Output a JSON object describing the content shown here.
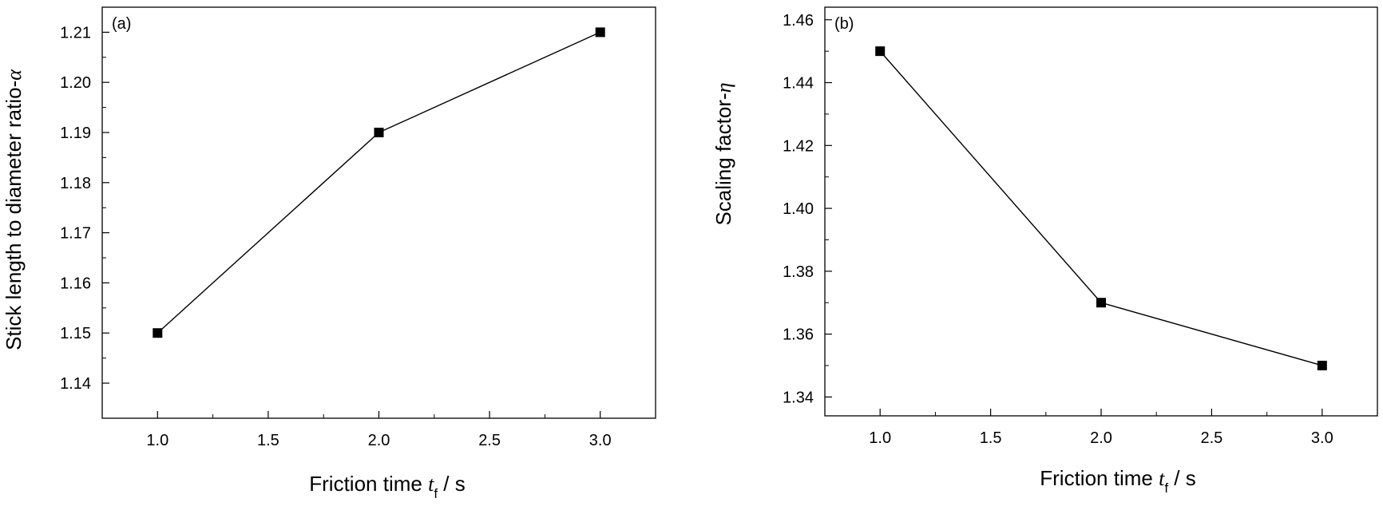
{
  "chart_data": [
    {
      "type": "line",
      "panel_label": "(a)",
      "x": [
        1.0,
        2.0,
        3.0
      ],
      "series": [
        {
          "values": [
            1.15,
            1.19,
            1.21
          ]
        }
      ],
      "xlim": [
        0.75,
        3.25
      ],
      "ylim": [
        1.133,
        1.215
      ],
      "xticks": [
        1.0,
        1.5,
        2.0,
        2.5,
        3.0
      ],
      "xtick_labels": [
        "1.0",
        "1.5",
        "2.0",
        "2.5",
        "3.0"
      ],
      "yticks": [
        1.14,
        1.15,
        1.16,
        1.17,
        1.18,
        1.19,
        1.2,
        1.21
      ],
      "ytick_labels": [
        "1.14",
        "1.15",
        "1.16",
        "1.17",
        "1.18",
        "1.19",
        "1.20",
        "1.21"
      ],
      "xlabel": {
        "prefix": "Friction time ",
        "var": "t",
        "sub": "f",
        "suffix": " / s"
      },
      "ylabel": {
        "prefix": "Stick length to diameter ratio-",
        "var": "α"
      },
      "grid": false,
      "marker": "square",
      "color": "#000000"
    },
    {
      "type": "line",
      "panel_label": "(b)",
      "x": [
        1.0,
        2.0,
        3.0
      ],
      "series": [
        {
          "values": [
            1.45,
            1.37,
            1.35
          ]
        }
      ],
      "xlim": [
        0.75,
        3.25
      ],
      "ylim": [
        1.334,
        1.464
      ],
      "xticks": [
        1.0,
        1.5,
        2.0,
        2.5,
        3.0
      ],
      "xtick_labels": [
        "1.0",
        "1.5",
        "2.0",
        "2.5",
        "3.0"
      ],
      "yticks": [
        1.34,
        1.36,
        1.38,
        1.4,
        1.42,
        1.44,
        1.46
      ],
      "ytick_labels": [
        "1.34",
        "1.36",
        "1.38",
        "1.40",
        "1.42",
        "1.44",
        "1.46"
      ],
      "xlabel": {
        "prefix": "Friction time ",
        "var": "t",
        "sub": "f",
        "suffix": " / s"
      },
      "ylabel": {
        "prefix": "Scaling factor-",
        "var": "η"
      },
      "grid": false,
      "marker": "square",
      "color": "#000000"
    }
  ]
}
